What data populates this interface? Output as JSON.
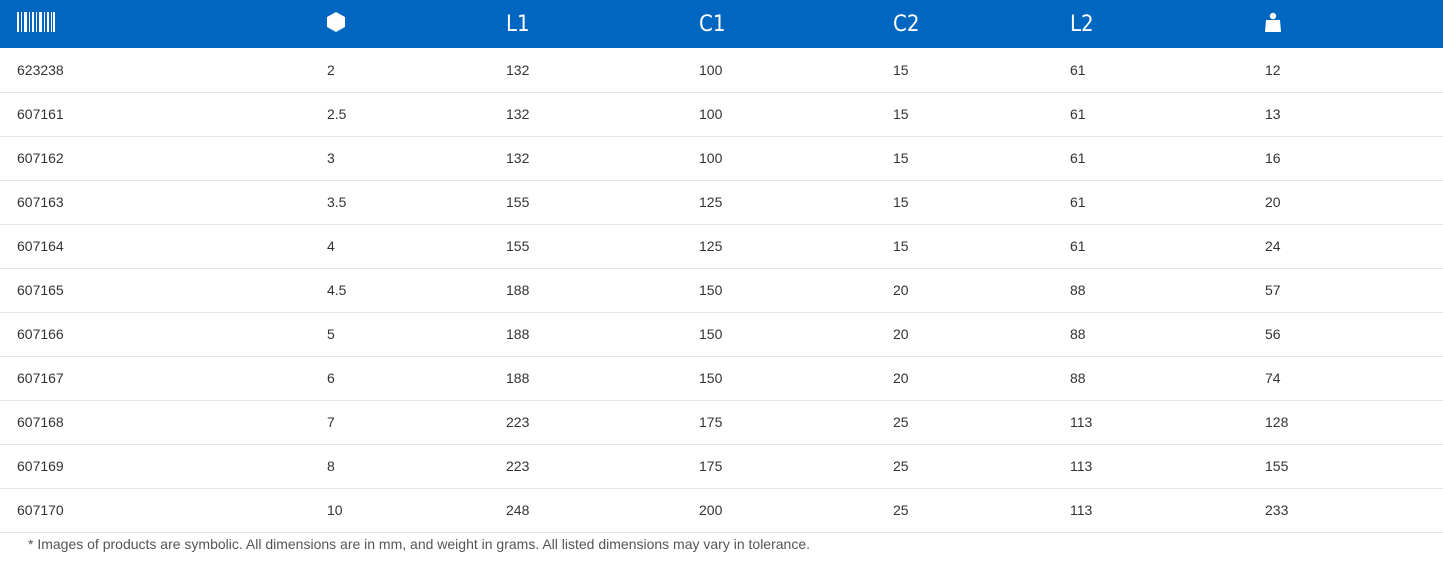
{
  "header": {
    "columns": [
      {
        "icon": "barcode-icon",
        "label": ""
      },
      {
        "icon": "hexagon-icon",
        "label": ""
      },
      {
        "icon": "",
        "label": "L1"
      },
      {
        "icon": "",
        "label": "C1"
      },
      {
        "icon": "",
        "label": "C2"
      },
      {
        "icon": "",
        "label": "L2"
      },
      {
        "icon": "weight-icon",
        "label": ""
      }
    ],
    "background": "#0066bf"
  },
  "rows": [
    [
      "623238",
      "2",
      "132",
      "100",
      "15",
      "61",
      "12"
    ],
    [
      "607161",
      "2.5",
      "132",
      "100",
      "15",
      "61",
      "13"
    ],
    [
      "607162",
      "3",
      "132",
      "100",
      "15",
      "61",
      "16"
    ],
    [
      "607163",
      "3.5",
      "155",
      "125",
      "15",
      "61",
      "20"
    ],
    [
      "607164",
      "4",
      "155",
      "125",
      "15",
      "61",
      "24"
    ],
    [
      "607165",
      "4.5",
      "188",
      "150",
      "20",
      "88",
      "57"
    ],
    [
      "607166",
      "5",
      "188",
      "150",
      "20",
      "88",
      "56"
    ],
    [
      "607167",
      "6",
      "188",
      "150",
      "20",
      "88",
      "74"
    ],
    [
      "607168",
      "7",
      "223",
      "175",
      "25",
      "113",
      "128"
    ],
    [
      "607169",
      "8",
      "223",
      "175",
      "25",
      "113",
      "155"
    ],
    [
      "607170",
      "10",
      "248",
      "200",
      "25",
      "113",
      "233"
    ]
  ],
  "footnote": "* Images of products are symbolic. All dimensions are in mm, and weight in grams. All listed dimensions may vary in tolerance."
}
